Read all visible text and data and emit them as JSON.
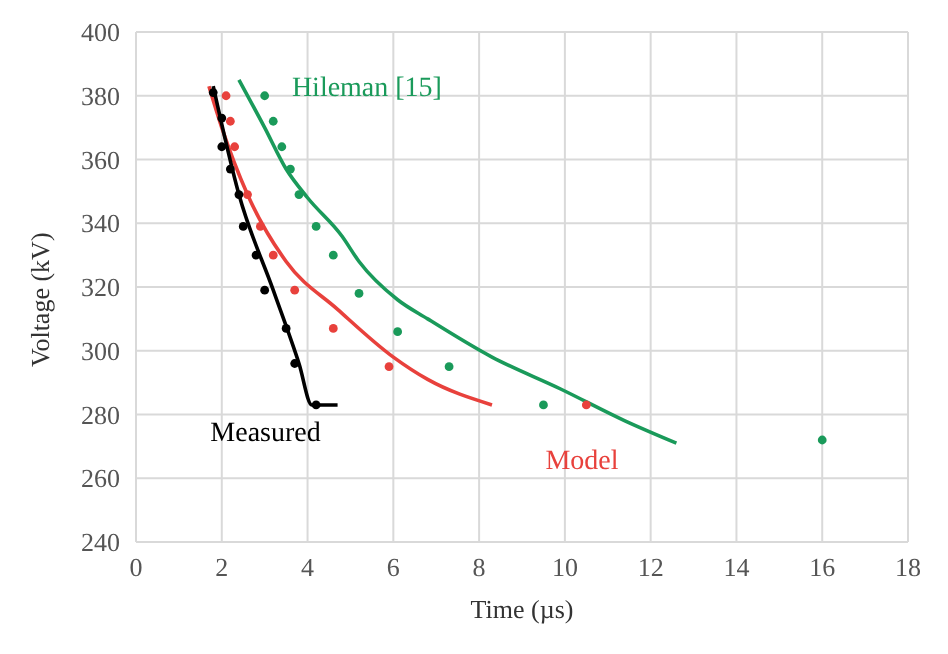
{
  "chart_data": {
    "type": "line",
    "xlabel": "Time (µs)",
    "ylabel": "Voltage (kV)",
    "xlim": [
      0,
      18
    ],
    "xticks": [
      0,
      2,
      4,
      6,
      8,
      10,
      12,
      14,
      16,
      18
    ],
    "ylim": [
      240,
      400
    ],
    "yticks": [
      240,
      260,
      280,
      300,
      320,
      340,
      360,
      380,
      400
    ],
    "grid": true,
    "legend": false,
    "series": [
      {
        "name": "Hileman [15]",
        "marker": "none",
        "color": "#1a9a5a",
        "x": [
          2.4,
          3.0,
          3.5,
          4.0,
          4.8,
          5.2,
          6.1,
          6.8,
          8.3,
          9.9,
          11.4,
          12.6
        ],
        "values": [
          385,
          370,
          357,
          348,
          336,
          328,
          316,
          310,
          298,
          288,
          278,
          271
        ]
      },
      {
        "type": "scatter",
        "marker": "circle",
        "color": "#1a9a5a",
        "x": [
          3.0,
          3.2,
          3.4,
          3.6,
          3.8,
          4.2,
          4.6,
          5.2,
          6.1,
          7.3,
          9.5,
          16.0
        ],
        "values": [
          380,
          372,
          364,
          357,
          349,
          339,
          330,
          318,
          306,
          295,
          283,
          272
        ]
      },
      {
        "name": "Model",
        "marker": "none",
        "color": "#e8413c",
        "x": [
          1.7,
          2.0,
          2.6,
          3.5,
          4.7,
          6.0,
          6.8,
          8.3
        ],
        "values": [
          383,
          370,
          349,
          328,
          313,
          298,
          291,
          283
        ]
      },
      {
        "type": "scatter",
        "marker": "circle",
        "color": "#e8413c",
        "x": [
          2.1,
          2.2,
          2.3,
          2.6,
          2.9,
          3.2,
          3.7,
          4.6,
          5.9,
          10.5
        ],
        "values": [
          380,
          372,
          364,
          349,
          339,
          330,
          319,
          307,
          295,
          283
        ]
      },
      {
        "name": "Measured",
        "marker": "none",
        "color": "#000000",
        "x": [
          1.8,
          2.4,
          3.2,
          3.8,
          4.1,
          4.7
        ],
        "values": [
          383,
          349,
          319,
          296,
          283,
          283
        ]
      },
      {
        "type": "scatter",
        "marker": "circle",
        "color": "#000000",
        "x": [
          1.8,
          2.0,
          2.0,
          2.2,
          2.4,
          2.5,
          2.8,
          3.0,
          3.5,
          3.7,
          4.2
        ],
        "values": [
          381,
          373,
          364,
          357,
          349,
          339,
          330,
          319,
          307,
          296,
          283
        ]
      }
    ]
  }
}
